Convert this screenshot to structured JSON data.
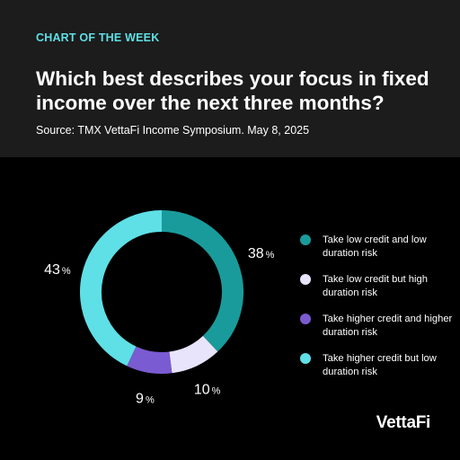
{
  "header": {
    "kicker": "CHART OF THE WEEK",
    "title": "Which best describes your focus in fixed income over the next three months?",
    "source": "Source: TMX VettaFi Income Symposium. May 8, 2025"
  },
  "brand": {
    "logo_text": "VettaFi",
    "accent_color": "#5ee0e6"
  },
  "chart_data": {
    "type": "pie",
    "style": "donut",
    "start_angle_deg": 0,
    "direction": "clockwise",
    "legend_position": "right",
    "series": [
      {
        "name": "Take low credit and low duration risk",
        "value": 38,
        "color": "#1a9b9b"
      },
      {
        "name": "Take low credit but high duration risk",
        "value": 10,
        "color": "#e8e4fb"
      },
      {
        "name": "Take higher credit and higher duration risk",
        "value": 9,
        "color": "#7a5bd1"
      },
      {
        "name": "Take higher credit but low duration risk",
        "value": 43,
        "color": "#5ee0e6"
      }
    ],
    "value_suffix": "%"
  }
}
